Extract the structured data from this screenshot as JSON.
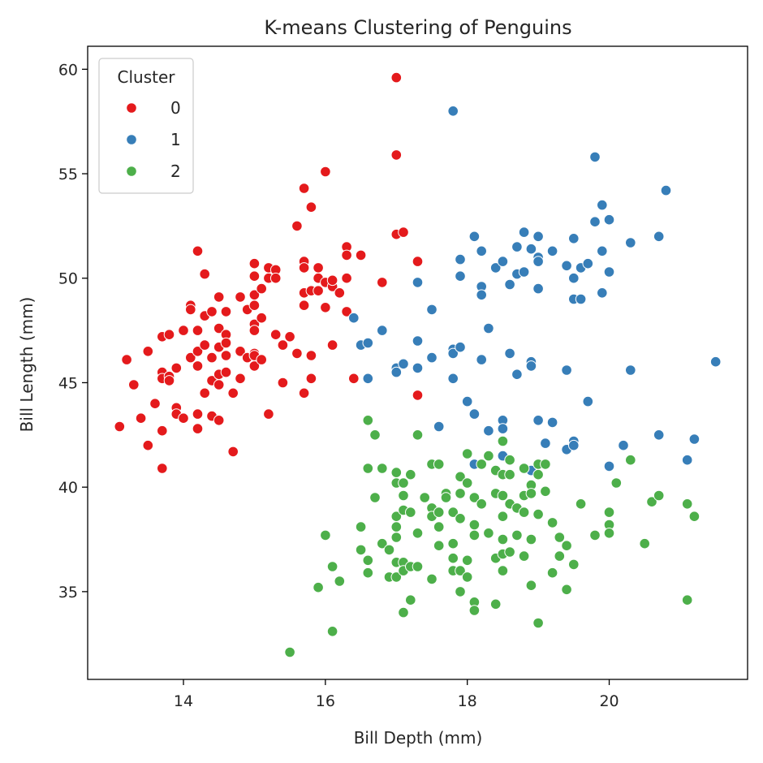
{
  "chart_data": {
    "type": "scatter",
    "title": "K-means Clustering of Penguins",
    "xlabel": "Bill Depth (mm)",
    "ylabel": "Bill Length (mm)",
    "xlim": [
      12.65,
      21.95
    ],
    "ylim": [
      30.8,
      61.1
    ],
    "xticks": [
      14,
      16,
      18,
      20
    ],
    "yticks": [
      35,
      40,
      45,
      50,
      55,
      60
    ],
    "grid": false,
    "legend": {
      "title": "Cluster",
      "position": "top-left"
    },
    "series": [
      {
        "name": "0",
        "color": "#e41a1c",
        "points": [
          [
            13.1,
            42.9
          ],
          [
            13.2,
            46.1
          ],
          [
            13.3,
            44.9
          ],
          [
            13.4,
            43.3
          ],
          [
            13.5,
            42.0
          ],
          [
            13.5,
            46.5
          ],
          [
            13.6,
            44.0
          ],
          [
            13.7,
            45.5
          ],
          [
            13.7,
            45.2
          ],
          [
            13.7,
            42.7
          ],
          [
            13.7,
            40.9
          ],
          [
            13.7,
            47.2
          ],
          [
            13.8,
            47.3
          ],
          [
            13.8,
            45.3
          ],
          [
            13.8,
            45.1
          ],
          [
            13.9,
            45.7
          ],
          [
            13.9,
            43.8
          ],
          [
            13.9,
            43.5
          ],
          [
            14.0,
            47.5
          ],
          [
            14.0,
            43.3
          ],
          [
            14.1,
            48.7
          ],
          [
            14.1,
            48.5
          ],
          [
            14.1,
            46.2
          ],
          [
            14.2,
            47.5
          ],
          [
            14.2,
            51.3
          ],
          [
            14.2,
            45.8
          ],
          [
            14.2,
            43.5
          ],
          [
            14.2,
            42.8
          ],
          [
            14.2,
            46.5
          ],
          [
            14.3,
            50.2
          ],
          [
            14.3,
            48.2
          ],
          [
            14.3,
            46.8
          ],
          [
            14.3,
            44.5
          ],
          [
            14.4,
            48.4
          ],
          [
            14.4,
            46.2
          ],
          [
            14.4,
            45.1
          ],
          [
            14.4,
            43.4
          ],
          [
            14.5,
            49.1
          ],
          [
            14.5,
            47.6
          ],
          [
            14.5,
            46.7
          ],
          [
            14.5,
            45.4
          ],
          [
            14.5,
            44.9
          ],
          [
            14.5,
            43.2
          ],
          [
            14.6,
            48.4
          ],
          [
            14.6,
            47.3
          ],
          [
            14.6,
            46.3
          ],
          [
            14.6,
            45.5
          ],
          [
            14.6,
            46.9
          ],
          [
            14.7,
            44.5
          ],
          [
            14.7,
            41.7
          ],
          [
            14.8,
            49.1
          ],
          [
            14.8,
            46.5
          ],
          [
            14.8,
            45.2
          ],
          [
            14.9,
            46.2
          ],
          [
            14.9,
            48.5
          ],
          [
            15.0,
            50.7
          ],
          [
            15.0,
            50.1
          ],
          [
            15.0,
            49.2
          ],
          [
            15.0,
            48.7
          ],
          [
            15.0,
            47.8
          ],
          [
            15.0,
            47.5
          ],
          [
            15.0,
            46.4
          ],
          [
            15.0,
            45.8
          ],
          [
            15.0,
            46.3
          ],
          [
            15.1,
            49.5
          ],
          [
            15.1,
            48.1
          ],
          [
            15.1,
            46.1
          ],
          [
            15.2,
            50.0
          ],
          [
            15.2,
            50.5
          ],
          [
            15.2,
            43.5
          ],
          [
            15.3,
            50.4
          ],
          [
            15.3,
            50.0
          ],
          [
            15.3,
            47.3
          ],
          [
            15.4,
            46.8
          ],
          [
            15.4,
            45.0
          ],
          [
            15.5,
            47.2
          ],
          [
            15.6,
            52.5
          ],
          [
            15.6,
            46.4
          ],
          [
            15.7,
            54.3
          ],
          [
            15.7,
            50.8
          ],
          [
            15.7,
            50.5
          ],
          [
            15.7,
            49.3
          ],
          [
            15.7,
            48.7
          ],
          [
            15.7,
            44.5
          ],
          [
            15.8,
            53.4
          ],
          [
            15.8,
            49.4
          ],
          [
            15.8,
            46.3
          ],
          [
            15.8,
            45.2
          ],
          [
            15.9,
            50.5
          ],
          [
            15.9,
            50.0
          ],
          [
            15.9,
            49.4
          ],
          [
            16.0,
            55.1
          ],
          [
            16.0,
            49.8
          ],
          [
            16.0,
            48.6
          ],
          [
            16.1,
            49.6
          ],
          [
            16.1,
            49.9
          ],
          [
            16.1,
            46.8
          ],
          [
            16.2,
            49.3
          ],
          [
            16.3,
            51.5
          ],
          [
            16.3,
            51.1
          ],
          [
            16.3,
            50.0
          ],
          [
            16.3,
            48.4
          ],
          [
            16.4,
            45.2
          ],
          [
            16.5,
            51.1
          ],
          [
            16.8,
            49.8
          ],
          [
            17.0,
            59.6
          ],
          [
            17.0,
            55.9
          ],
          [
            17.0,
            52.1
          ],
          [
            17.1,
            52.2
          ],
          [
            17.3,
            50.8
          ],
          [
            17.3,
            44.4
          ]
        ]
      },
      {
        "name": "1",
        "color": "#377eb8",
        "points": [
          [
            16.4,
            48.1
          ],
          [
            16.5,
            46.8
          ],
          [
            16.6,
            46.9
          ],
          [
            16.6,
            45.2
          ],
          [
            16.8,
            47.5
          ],
          [
            17.0,
            45.7
          ],
          [
            17.0,
            45.5
          ],
          [
            17.1,
            45.9
          ],
          [
            17.3,
            49.8
          ],
          [
            17.3,
            47.0
          ],
          [
            17.3,
            45.7
          ],
          [
            17.5,
            48.5
          ],
          [
            17.5,
            46.2
          ],
          [
            17.6,
            42.9
          ],
          [
            17.8,
            58.0
          ],
          [
            17.8,
            46.6
          ],
          [
            17.8,
            46.4
          ],
          [
            17.8,
            45.2
          ],
          [
            17.9,
            50.9
          ],
          [
            17.9,
            50.1
          ],
          [
            17.9,
            46.7
          ],
          [
            18.0,
            44.1
          ],
          [
            18.1,
            52.0
          ],
          [
            18.1,
            43.5
          ],
          [
            18.1,
            41.1
          ],
          [
            18.2,
            49.6
          ],
          [
            18.2,
            49.2
          ],
          [
            18.2,
            51.3
          ],
          [
            18.2,
            46.1
          ],
          [
            18.3,
            47.6
          ],
          [
            18.3,
            42.7
          ],
          [
            18.4,
            50.5
          ],
          [
            18.5,
            50.8
          ],
          [
            18.5,
            43.2
          ],
          [
            18.5,
            42.8
          ],
          [
            18.5,
            41.5
          ],
          [
            18.6,
            49.7
          ],
          [
            18.6,
            46.4
          ],
          [
            18.7,
            51.5
          ],
          [
            18.7,
            50.2
          ],
          [
            18.7,
            45.4
          ],
          [
            18.8,
            52.2
          ],
          [
            18.8,
            50.3
          ],
          [
            18.9,
            51.4
          ],
          [
            18.9,
            46.0
          ],
          [
            18.9,
            45.8
          ],
          [
            18.9,
            40.8
          ],
          [
            19.0,
            52.0
          ],
          [
            19.0,
            51.0
          ],
          [
            19.0,
            50.8
          ],
          [
            19.0,
            49.5
          ],
          [
            19.0,
            43.2
          ],
          [
            19.1,
            42.1
          ],
          [
            19.2,
            51.3
          ],
          [
            19.2,
            43.1
          ],
          [
            19.4,
            50.6
          ],
          [
            19.4,
            45.6
          ],
          [
            19.4,
            41.8
          ],
          [
            19.5,
            51.9
          ],
          [
            19.5,
            50.0
          ],
          [
            19.5,
            49.0
          ],
          [
            19.5,
            42.2
          ],
          [
            19.5,
            42.0
          ],
          [
            19.6,
            50.5
          ],
          [
            19.6,
            49.0
          ],
          [
            19.7,
            50.7
          ],
          [
            19.7,
            44.1
          ],
          [
            19.8,
            55.8
          ],
          [
            19.8,
            52.7
          ],
          [
            19.9,
            53.5
          ],
          [
            19.9,
            51.3
          ],
          [
            19.9,
            49.3
          ],
          [
            20.0,
            52.8
          ],
          [
            20.0,
            50.3
          ],
          [
            20.0,
            41.0
          ],
          [
            20.2,
            42.0
          ],
          [
            20.3,
            51.7
          ],
          [
            20.3,
            45.6
          ],
          [
            20.7,
            52.0
          ],
          [
            20.7,
            42.5
          ],
          [
            20.8,
            54.2
          ],
          [
            21.1,
            41.3
          ],
          [
            21.2,
            42.3
          ],
          [
            21.5,
            46.0
          ]
        ]
      },
      {
        "name": "2",
        "color": "#4daf4a",
        "points": [
          [
            15.5,
            32.1
          ],
          [
            15.9,
            35.2
          ],
          [
            16.0,
            37.7
          ],
          [
            16.1,
            36.2
          ],
          [
            16.1,
            33.1
          ],
          [
            16.2,
            35.5
          ],
          [
            16.5,
            38.1
          ],
          [
            16.5,
            37.0
          ],
          [
            16.6,
            43.2
          ],
          [
            16.6,
            40.9
          ],
          [
            16.6,
            36.5
          ],
          [
            16.6,
            35.9
          ],
          [
            16.7,
            42.5
          ],
          [
            16.7,
            39.5
          ],
          [
            16.8,
            40.9
          ],
          [
            16.8,
            37.3
          ],
          [
            16.9,
            37.0
          ],
          [
            16.9,
            35.7
          ],
          [
            17.0,
            40.7
          ],
          [
            17.0,
            40.2
          ],
          [
            17.0,
            38.6
          ],
          [
            17.0,
            38.1
          ],
          [
            17.0,
            37.6
          ],
          [
            17.0,
            36.4
          ],
          [
            17.0,
            35.7
          ],
          [
            17.1,
            40.2
          ],
          [
            17.1,
            39.6
          ],
          [
            17.1,
            38.9
          ],
          [
            17.1,
            36.4
          ],
          [
            17.1,
            36.0
          ],
          [
            17.1,
            34.0
          ],
          [
            17.2,
            40.6
          ],
          [
            17.2,
            38.8
          ],
          [
            17.2,
            36.2
          ],
          [
            17.2,
            34.6
          ],
          [
            17.3,
            42.5
          ],
          [
            17.3,
            37.8
          ],
          [
            17.3,
            36.2
          ],
          [
            17.4,
            39.5
          ],
          [
            17.5,
            41.1
          ],
          [
            17.5,
            39.0
          ],
          [
            17.5,
            38.6
          ],
          [
            17.5,
            35.6
          ],
          [
            17.6,
            41.1
          ],
          [
            17.6,
            38.8
          ],
          [
            17.6,
            38.1
          ],
          [
            17.6,
            37.2
          ],
          [
            17.7,
            39.7
          ],
          [
            17.7,
            39.5
          ],
          [
            17.8,
            38.8
          ],
          [
            17.8,
            37.3
          ],
          [
            17.8,
            36.6
          ],
          [
            17.8,
            36.0
          ],
          [
            17.9,
            40.5
          ],
          [
            17.9,
            39.7
          ],
          [
            17.9,
            38.5
          ],
          [
            17.9,
            36.0
          ],
          [
            17.9,
            35.0
          ],
          [
            18.0,
            41.6
          ],
          [
            18.0,
            40.2
          ],
          [
            18.0,
            35.7
          ],
          [
            18.0,
            36.5
          ],
          [
            18.1,
            39.5
          ],
          [
            18.1,
            38.2
          ],
          [
            18.1,
            37.7
          ],
          [
            18.1,
            34.5
          ],
          [
            18.1,
            34.1
          ],
          [
            18.2,
            41.1
          ],
          [
            18.2,
            39.2
          ],
          [
            18.3,
            41.5
          ],
          [
            18.3,
            37.8
          ],
          [
            18.4,
            40.8
          ],
          [
            18.4,
            39.7
          ],
          [
            18.4,
            36.6
          ],
          [
            18.4,
            34.4
          ],
          [
            18.5,
            42.2
          ],
          [
            18.5,
            40.6
          ],
          [
            18.5,
            39.6
          ],
          [
            18.5,
            38.6
          ],
          [
            18.5,
            37.5
          ],
          [
            18.5,
            36.8
          ],
          [
            18.5,
            36.0
          ],
          [
            18.6,
            41.3
          ],
          [
            18.6,
            40.6
          ],
          [
            18.6,
            39.2
          ],
          [
            18.6,
            36.9
          ],
          [
            18.7,
            39.0
          ],
          [
            18.7,
            37.7
          ],
          [
            18.8,
            40.9
          ],
          [
            18.8,
            39.6
          ],
          [
            18.8,
            38.8
          ],
          [
            18.8,
            36.7
          ],
          [
            18.9,
            40.1
          ],
          [
            18.9,
            39.7
          ],
          [
            18.9,
            37.5
          ],
          [
            18.9,
            35.3
          ],
          [
            19.0,
            41.1
          ],
          [
            19.0,
            40.6
          ],
          [
            19.0,
            38.7
          ],
          [
            19.0,
            33.5
          ],
          [
            19.1,
            41.1
          ],
          [
            19.1,
            39.8
          ],
          [
            19.2,
            38.3
          ],
          [
            19.2,
            35.9
          ],
          [
            19.3,
            37.6
          ],
          [
            19.3,
            36.7
          ],
          [
            19.4,
            37.2
          ],
          [
            19.4,
            35.1
          ],
          [
            19.5,
            36.3
          ],
          [
            19.6,
            39.2
          ],
          [
            19.8,
            37.7
          ],
          [
            20.0,
            38.8
          ],
          [
            20.0,
            38.2
          ],
          [
            20.0,
            37.8
          ],
          [
            20.1,
            40.2
          ],
          [
            20.3,
            41.3
          ],
          [
            20.5,
            37.3
          ],
          [
            20.6,
            39.3
          ],
          [
            20.7,
            39.6
          ],
          [
            21.1,
            39.2
          ],
          [
            21.1,
            34.6
          ],
          [
            21.2,
            38.6
          ]
        ]
      }
    ]
  }
}
